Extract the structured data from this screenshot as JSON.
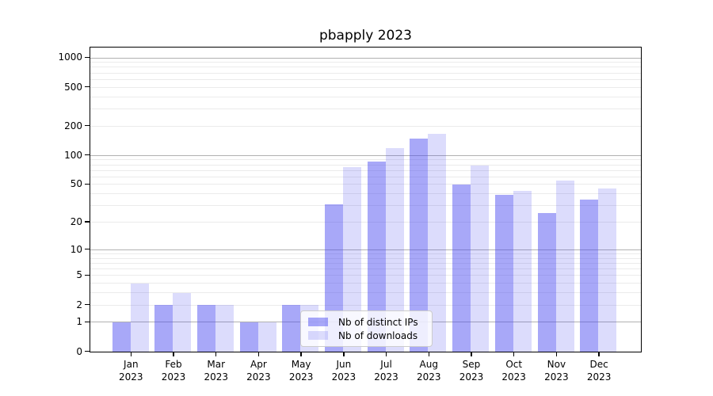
{
  "title": "pbapply 2023",
  "chart_data": {
    "type": "bar",
    "title": "pbapply 2023",
    "scale": "log10(1+x)",
    "grid": true,
    "legend_position": "lower center",
    "categories": [
      "Jan 2023",
      "Feb 2023",
      "Mar 2023",
      "Apr 2023",
      "May 2023",
      "Jun 2023",
      "Jul 2023",
      "Aug 2023",
      "Sep 2023",
      "Oct 2023",
      "Nov 2023",
      "Dec 2023"
    ],
    "series": [
      {
        "name": "Nb of distinct IPs",
        "color_hex": "#a8a8f8",
        "fill_rgba": "rgba(70,70,240,0.47)",
        "values": [
          1,
          2,
          2,
          1,
          2,
          31,
          87,
          148,
          50,
          39,
          25,
          35
        ]
      },
      {
        "name": "Nb of downloads",
        "color_hex": "#dcdcfa",
        "fill_rgba": "rgba(70,70,240,0.19)",
        "values": [
          4,
          3,
          2,
          1,
          2,
          75,
          120,
          168,
          78,
          43,
          55,
          45
        ]
      }
    ],
    "xlabel": "",
    "ylabel": "",
    "ylim": [
      0,
      1300
    ],
    "y_tick_labels": [
      "1000",
      "500",
      "200",
      "100",
      "50",
      "20",
      "10",
      "5",
      "2",
      "1",
      "0"
    ],
    "y_tick_values": [
      1000,
      500,
      200,
      100,
      50,
      20,
      10,
      5,
      2,
      1,
      0
    ],
    "major_grid_values": [
      1,
      10,
      100,
      1000
    ],
    "minor_grid_values": [
      2,
      3,
      4,
      5,
      6,
      7,
      8,
      9,
      20,
      30,
      40,
      50,
      60,
      70,
      80,
      90,
      200,
      300,
      400,
      500,
      600,
      700,
      800,
      900
    ],
    "colors": {
      "major_grid": "#b1b1b1",
      "minor_grid": "#ebebeb",
      "spine": "#000000",
      "text": "#000000",
      "legend_border": "#cccccc"
    }
  },
  "legend": {
    "items": [
      {
        "label": "Nb of distinct IPs",
        "color": "rgba(70,70,240,0.47)"
      },
      {
        "label": "Nb of downloads",
        "color": "rgba(70,70,240,0.19)"
      }
    ]
  }
}
